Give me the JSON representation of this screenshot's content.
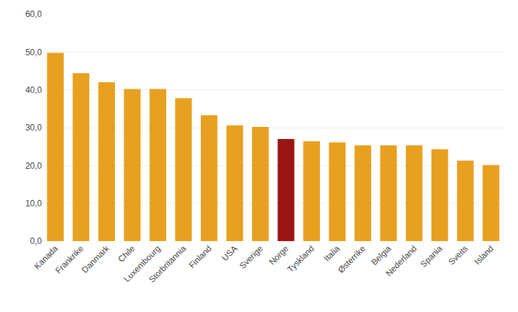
{
  "chart_data": {
    "type": "bar",
    "categories": [
      "Kanada",
      "Frankrike",
      "Danmark",
      "Chile",
      "Luxembourg",
      "Storbritannia",
      "Finland",
      "USA",
      "Sverige",
      "Norge",
      "Tyskland",
      "Italia",
      "Østerrike",
      "Belgia",
      "Nederland",
      "Spania",
      "Sveits",
      "Island"
    ],
    "values": [
      49.8,
      44.4,
      42.0,
      40.2,
      40.2,
      37.8,
      33.3,
      30.6,
      30.2,
      27.0,
      26.4,
      26.1,
      25.3,
      25.3,
      25.3,
      24.3,
      21.3,
      20.1
    ],
    "colors": [
      "#E8A020",
      "#E8A020",
      "#E8A020",
      "#E8A020",
      "#E8A020",
      "#E8A020",
      "#E8A020",
      "#E8A020",
      "#E8A020",
      "#9B1515",
      "#E8A020",
      "#E8A020",
      "#E8A020",
      "#E8A020",
      "#E8A020",
      "#E8A020",
      "#E8A020",
      "#E8A020"
    ],
    "ylim": [
      0,
      60
    ],
    "yticks": [
      {
        "value": 0,
        "label": "0,0"
      },
      {
        "value": 10,
        "label": "10,0"
      },
      {
        "value": 20,
        "label": "20,0"
      },
      {
        "value": 30,
        "label": "30,0"
      },
      {
        "value": 40,
        "label": "40,0"
      },
      {
        "value": 50,
        "label": "50,0"
      },
      {
        "value": 60,
        "label": "60,0"
      }
    ],
    "grid": true
  }
}
